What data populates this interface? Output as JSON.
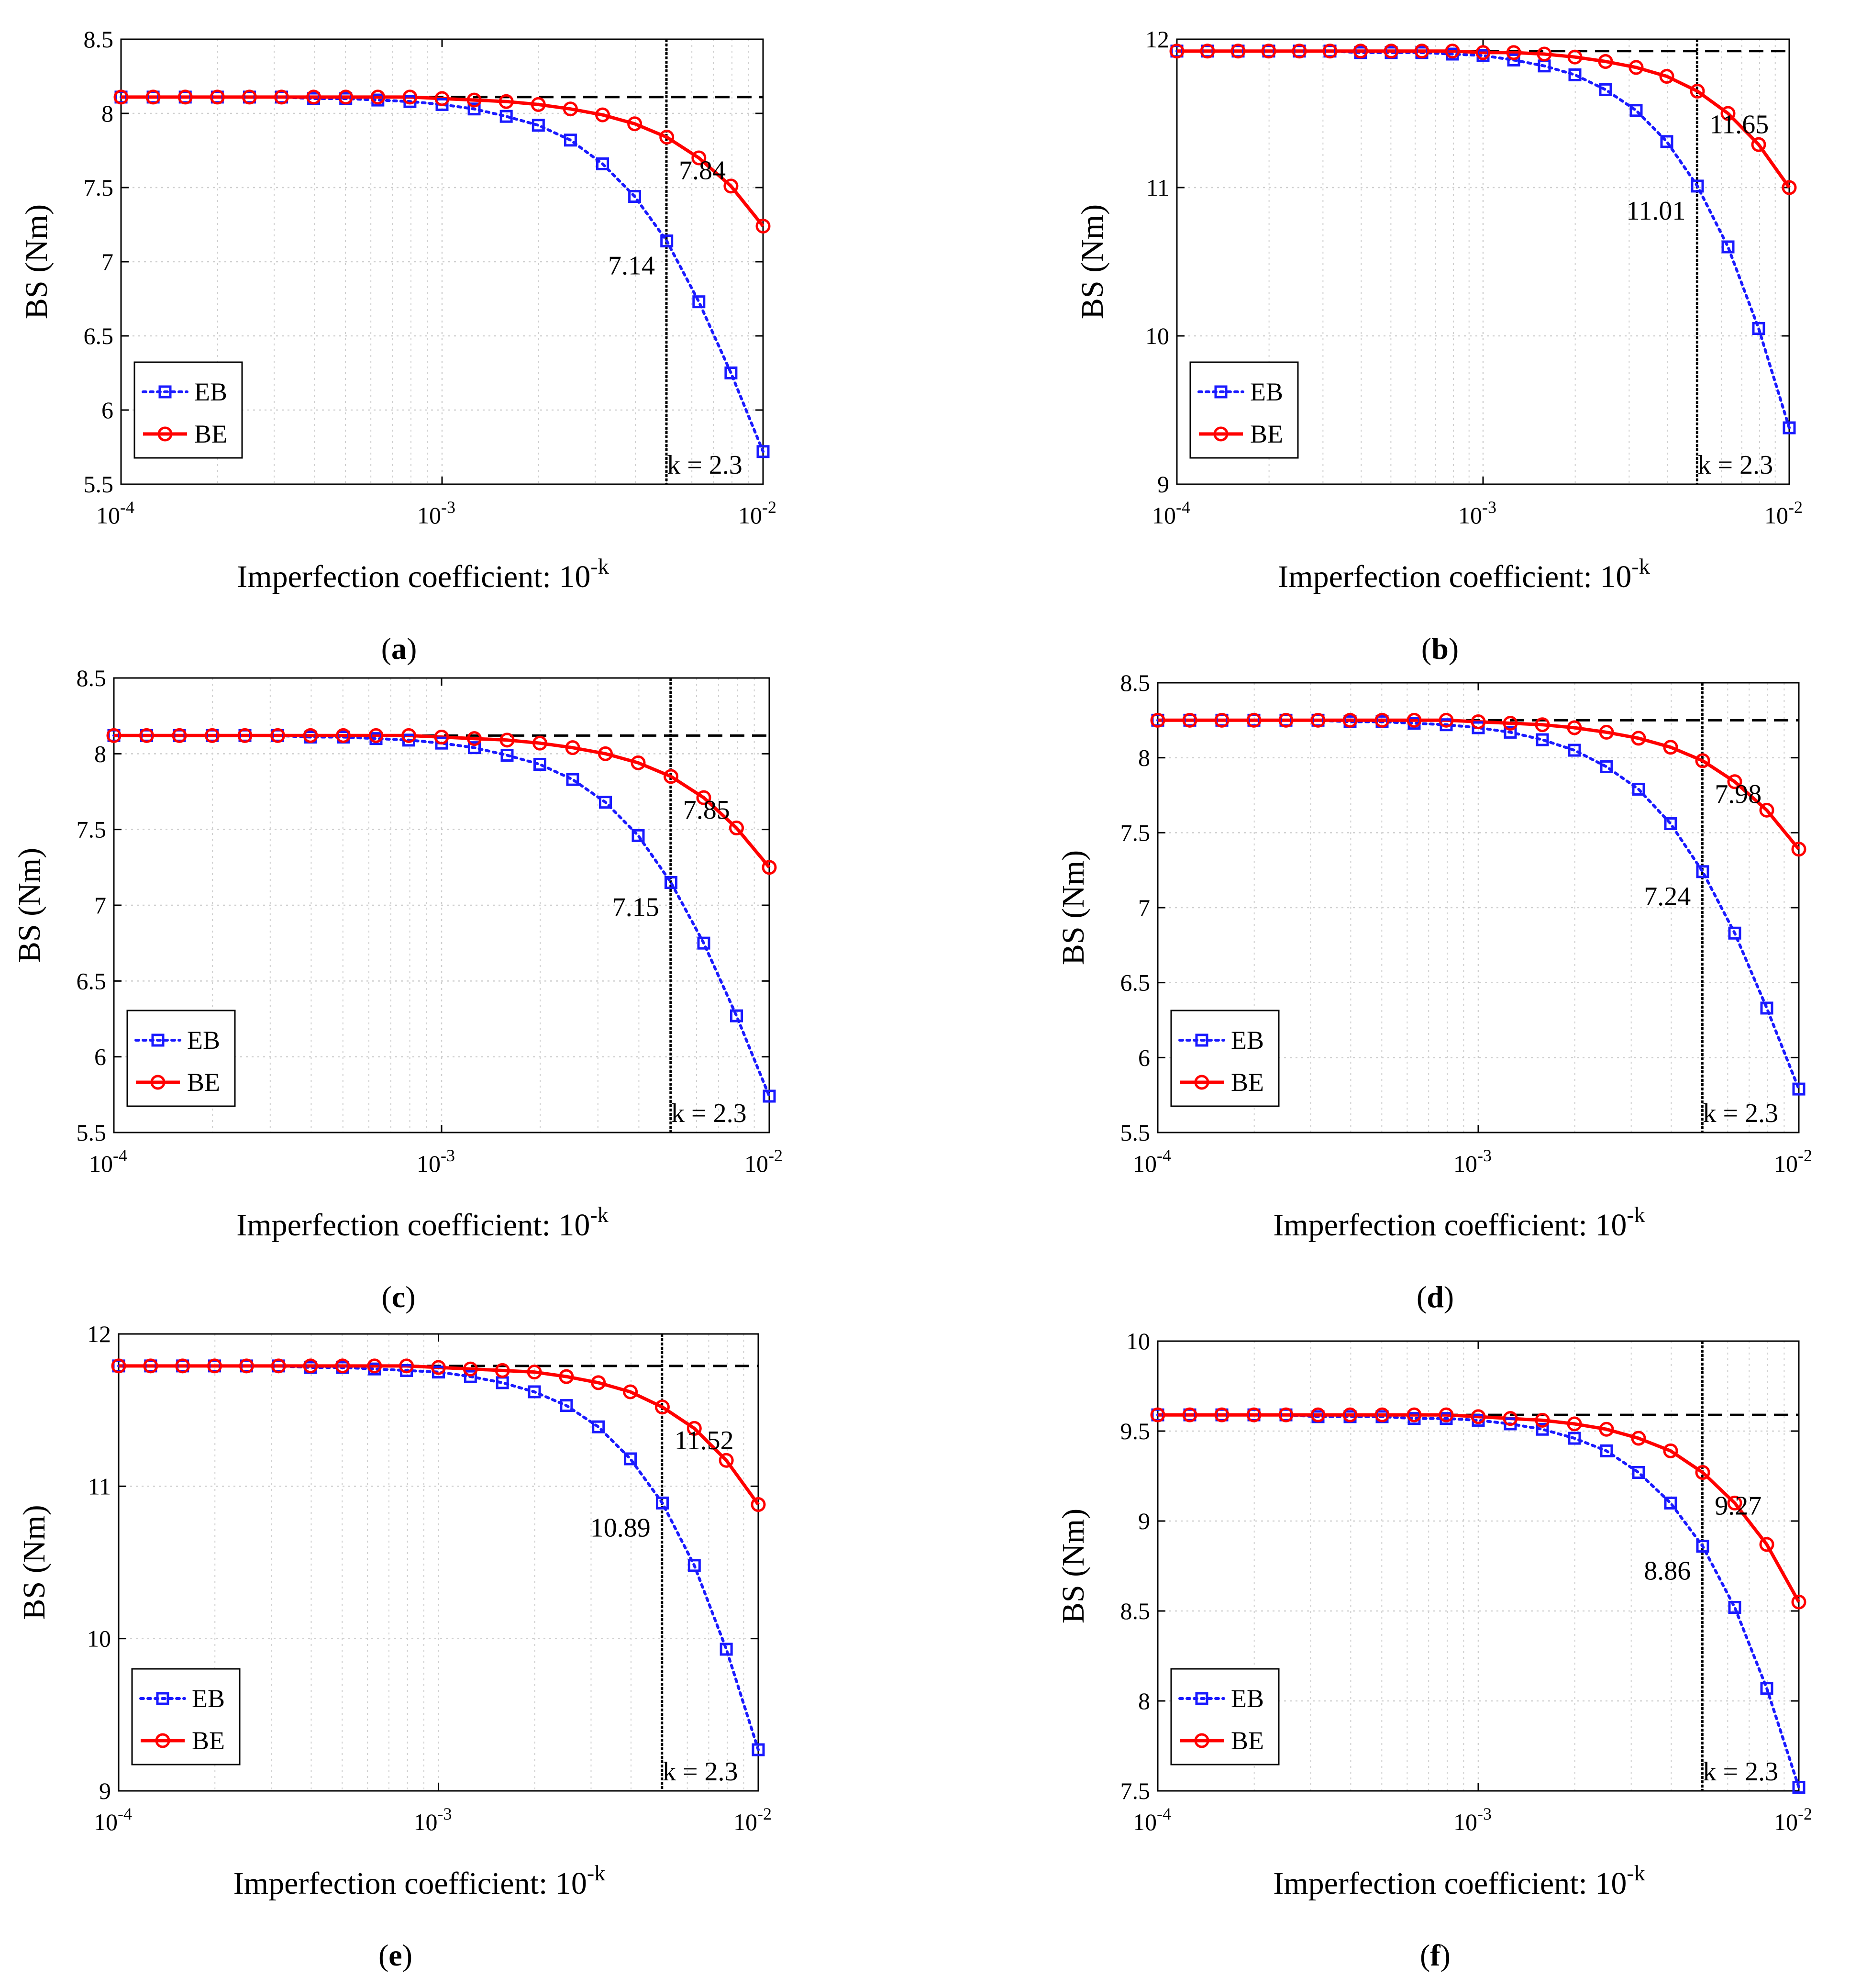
{
  "colors": {
    "eb": "#1a1aff",
    "be": "#ff0000",
    "grid": "#cfcfcf",
    "ref": "#000000"
  },
  "chart_data": [
    {
      "id": "a",
      "type": "line",
      "panel_label": "a",
      "xlabel": "Imperfection coefficient: 10",
      "xlabel_exp": "-k",
      "ylabel": "BS (Nm)",
      "xscale": "log",
      "xlim": [
        0.0001,
        0.01
      ],
      "ylim": [
        5.5,
        8.5
      ],
      "yticks": [
        5.5,
        6,
        6.5,
        7,
        7.5,
        8,
        8.5
      ],
      "yticklabels": [
        "5.5",
        "6",
        "6.5",
        "7",
        "7.5",
        "8",
        "8.5"
      ],
      "xticks": [
        0.0001,
        0.001,
        0.01
      ],
      "xtick_exps": [
        "-4",
        "-3",
        "-2"
      ],
      "xtick_base": "10",
      "ref_level": 8.11,
      "kx": 0.005,
      "k_label": "k = 2.3",
      "ann_be": "7.84",
      "ann_eb": "7.14",
      "legend": [
        "EB",
        "BE"
      ],
      "series": [
        {
          "name": "EB",
          "values": [
            8.11,
            8.11,
            8.11,
            8.11,
            8.11,
            8.11,
            8.1,
            8.1,
            8.09,
            8.08,
            8.06,
            8.03,
            7.98,
            7.92,
            7.82,
            7.66,
            7.44,
            7.14,
            6.73,
            6.25,
            5.72
          ]
        },
        {
          "name": "BE",
          "values": [
            8.11,
            8.11,
            8.11,
            8.11,
            8.11,
            8.11,
            8.11,
            8.11,
            8.11,
            8.11,
            8.1,
            8.09,
            8.08,
            8.06,
            8.03,
            7.99,
            7.93,
            7.84,
            7.7,
            7.51,
            7.24
          ]
        }
      ]
    },
    {
      "id": "b",
      "type": "line",
      "panel_label": "b",
      "xlabel": "Imperfection coefficient: 10",
      "xlabel_exp": "-k",
      "ylabel": "BS (Nm)",
      "xscale": "log",
      "xlim": [
        0.0001,
        0.01
      ],
      "ylim": [
        9,
        12
      ],
      "yticks": [
        9,
        10,
        11,
        12
      ],
      "yticklabels": [
        "9",
        "10",
        "11",
        "12"
      ],
      "xticks": [
        0.0001,
        0.001,
        0.01
      ],
      "xtick_exps": [
        "-4",
        "-3",
        "-2"
      ],
      "xtick_base": "10",
      "ref_level": 11.92,
      "kx": 0.005,
      "k_label": "k = 2.3",
      "ann_be": "11.65",
      "ann_eb": "11.01",
      "legend": [
        "EB",
        "BE"
      ],
      "series": [
        {
          "name": "EB",
          "values": [
            11.92,
            11.92,
            11.92,
            11.92,
            11.92,
            11.92,
            11.91,
            11.91,
            11.91,
            11.9,
            11.89,
            11.86,
            11.82,
            11.76,
            11.66,
            11.52,
            11.31,
            11.01,
            10.6,
            10.05,
            9.38
          ]
        },
        {
          "name": "BE",
          "values": [
            11.92,
            11.92,
            11.92,
            11.92,
            11.92,
            11.92,
            11.92,
            11.92,
            11.92,
            11.92,
            11.91,
            11.91,
            11.9,
            11.88,
            11.85,
            11.81,
            11.75,
            11.65,
            11.5,
            11.29,
            11.0
          ]
        }
      ]
    },
    {
      "id": "c",
      "type": "line",
      "panel_label": "c",
      "xlabel": "Imperfection coefficient: 10",
      "xlabel_exp": "-k",
      "ylabel": "BS (Nm)",
      "xscale": "log",
      "xlim": [
        0.0001,
        0.01
      ],
      "ylim": [
        5.5,
        8.5
      ],
      "yticks": [
        5.5,
        6,
        6.5,
        7,
        7.5,
        8,
        8.5
      ],
      "yticklabels": [
        "5.5",
        "6",
        "6.5",
        "7",
        "7.5",
        "8",
        "8.5"
      ],
      "xticks": [
        0.0001,
        0.001,
        0.01
      ],
      "xtick_exps": [
        "-4",
        "-3",
        "-2"
      ],
      "xtick_base": "10",
      "ref_level": 8.12,
      "kx": 0.005,
      "k_label": "k = 2.3",
      "ann_be": "7.85",
      "ann_eb": "7.15",
      "legend": [
        "EB",
        "BE"
      ],
      "series": [
        {
          "name": "EB",
          "values": [
            8.12,
            8.12,
            8.12,
            8.12,
            8.12,
            8.12,
            8.11,
            8.11,
            8.1,
            8.09,
            8.07,
            8.04,
            7.99,
            7.93,
            7.83,
            7.68,
            7.46,
            7.15,
            6.75,
            6.27,
            5.74
          ]
        },
        {
          "name": "BE",
          "values": [
            8.12,
            8.12,
            8.12,
            8.12,
            8.12,
            8.12,
            8.12,
            8.12,
            8.12,
            8.12,
            8.11,
            8.1,
            8.09,
            8.07,
            8.04,
            8.0,
            7.94,
            7.85,
            7.71,
            7.51,
            7.25
          ]
        }
      ]
    },
    {
      "id": "d",
      "type": "line",
      "panel_label": "d",
      "xlabel": "Imperfection coefficient: 10",
      "xlabel_exp": "-k",
      "ylabel": "BS (Nm)",
      "xscale": "log",
      "xlim": [
        0.0001,
        0.01
      ],
      "ylim": [
        5.5,
        8.5
      ],
      "yticks": [
        5.5,
        6,
        6.5,
        7,
        7.5,
        8,
        8.5
      ],
      "yticklabels": [
        "5.5",
        "6",
        "6.5",
        "7",
        "7.5",
        "8",
        "8.5"
      ],
      "xticks": [
        0.0001,
        0.001,
        0.01
      ],
      "xtick_exps": [
        "-4",
        "-3",
        "-2"
      ],
      "xtick_base": "10",
      "ref_level": 8.25,
      "kx": 0.005,
      "k_label": "k = 2.3",
      "ann_be": "7.98",
      "ann_eb": "7.24",
      "legend": [
        "EB",
        "BE"
      ],
      "series": [
        {
          "name": "EB",
          "values": [
            8.25,
            8.25,
            8.25,
            8.25,
            8.25,
            8.25,
            8.24,
            8.24,
            8.23,
            8.22,
            8.2,
            8.17,
            8.12,
            8.05,
            7.94,
            7.79,
            7.56,
            7.24,
            6.83,
            6.33,
            5.79
          ]
        },
        {
          "name": "BE",
          "values": [
            8.25,
            8.25,
            8.25,
            8.25,
            8.25,
            8.25,
            8.25,
            8.25,
            8.25,
            8.25,
            8.24,
            8.23,
            8.22,
            8.2,
            8.17,
            8.13,
            8.07,
            7.98,
            7.84,
            7.65,
            7.39
          ]
        }
      ]
    },
    {
      "id": "e",
      "type": "line",
      "panel_label": "e",
      "xlabel": "Imperfection coefficient: 10",
      "xlabel_exp": "-k",
      "ylabel": "BS (Nm)",
      "xscale": "log",
      "xlim": [
        0.0001,
        0.01
      ],
      "ylim": [
        9,
        12
      ],
      "yticks": [
        9,
        10,
        11,
        12
      ],
      "yticklabels": [
        "9",
        "10",
        "11",
        "12"
      ],
      "xticks": [
        0.0001,
        0.001,
        0.01
      ],
      "xtick_exps": [
        "-4",
        "-3",
        "-2"
      ],
      "xtick_base": "10",
      "ref_level": 11.79,
      "kx": 0.005,
      "k_label": "k = 2.3",
      "ann_be": "11.52",
      "ann_eb": "10.89",
      "legend": [
        "EB",
        "BE"
      ],
      "series": [
        {
          "name": "EB",
          "values": [
            11.79,
            11.79,
            11.79,
            11.79,
            11.79,
            11.79,
            11.78,
            11.78,
            11.77,
            11.76,
            11.75,
            11.72,
            11.68,
            11.62,
            11.53,
            11.39,
            11.18,
            10.89,
            10.48,
            9.93,
            9.27
          ]
        },
        {
          "name": "BE",
          "values": [
            11.79,
            11.79,
            11.79,
            11.79,
            11.79,
            11.79,
            11.79,
            11.79,
            11.79,
            11.79,
            11.78,
            11.77,
            11.76,
            11.75,
            11.72,
            11.68,
            11.62,
            11.52,
            11.38,
            11.17,
            10.88
          ]
        }
      ]
    },
    {
      "id": "f",
      "type": "line",
      "panel_label": "f",
      "xlabel": "Imperfection coefficient: 10",
      "xlabel_exp": "-k",
      "ylabel": "BS (Nm)",
      "xscale": "log",
      "xlim": [
        0.0001,
        0.01
      ],
      "ylim": [
        7.5,
        10
      ],
      "yticks": [
        7.5,
        8,
        8.5,
        9,
        9.5,
        10
      ],
      "yticklabels": [
        "7.5",
        "8",
        "8.5",
        "9",
        "9.5",
        "10"
      ],
      "xticks": [
        0.0001,
        0.001,
        0.01
      ],
      "xtick_exps": [
        "-4",
        "-3",
        "-2"
      ],
      "xtick_base": "10",
      "ref_level": 9.59,
      "kx": 0.005,
      "k_label": "k = 2.3",
      "ann_be": "9.27",
      "ann_eb": "8.86",
      "legend": [
        "EB",
        "BE"
      ],
      "series": [
        {
          "name": "EB",
          "values": [
            9.59,
            9.59,
            9.59,
            9.59,
            9.59,
            9.58,
            9.58,
            9.58,
            9.57,
            9.57,
            9.56,
            9.54,
            9.51,
            9.46,
            9.39,
            9.27,
            9.1,
            8.86,
            8.52,
            8.07,
            7.52
          ]
        },
        {
          "name": "BE",
          "values": [
            9.59,
            9.59,
            9.59,
            9.59,
            9.59,
            9.59,
            9.59,
            9.59,
            9.59,
            9.59,
            9.58,
            9.57,
            9.56,
            9.54,
            9.51,
            9.46,
            9.39,
            9.27,
            9.1,
            8.87,
            8.55
          ]
        }
      ]
    }
  ]
}
